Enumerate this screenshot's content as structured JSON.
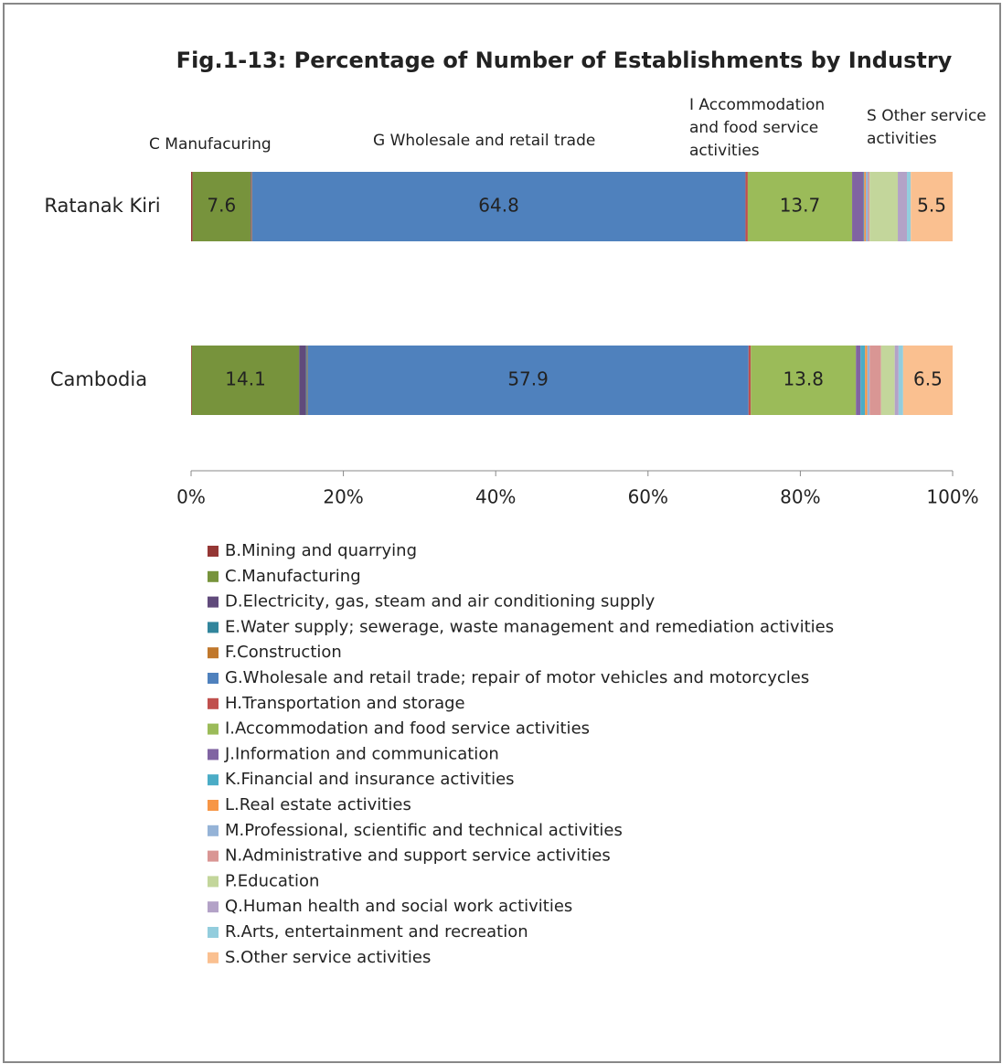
{
  "chart_data": {
    "type": "stacked_bar_horizontal",
    "title": "Fig.1-13: Percentage of Number of Establishments by Industry",
    "categories": [
      "Ratanak Kiri",
      "Cambodia"
    ],
    "xlim": [
      0,
      100
    ],
    "xticks": [
      {
        "value": 0,
        "label": "0%"
      },
      {
        "value": 20,
        "label": "20%"
      },
      {
        "value": 40,
        "label": "40%"
      },
      {
        "value": 60,
        "label": "60%"
      },
      {
        "value": 80,
        "label": "80%"
      },
      {
        "value": 100,
        "label": "100%"
      }
    ],
    "legend_position": "bottom",
    "annotations": [
      {
        "lines": [
          "C Manufacuring"
        ]
      },
      {
        "lines": [
          "G Wholesale and retail  trade"
        ]
      },
      {
        "lines": [
          "I Accommodation",
          "and food service",
          "activities"
        ]
      },
      {
        "lines": [
          "S Other service",
          "activities"
        ]
      }
    ],
    "series": [
      {
        "name": "B.Mining and quarrying",
        "color": "#953735",
        "values": [
          0.2,
          0.1
        ]
      },
      {
        "name": "C.Manufacturing",
        "color": "#77933c",
        "values": [
          7.6,
          14.1
        ],
        "data_labels": true
      },
      {
        "name": "D.Electricity, gas, steam and air conditioning supply",
        "color": "#604a7b",
        "values": [
          0.1,
          0.9
        ]
      },
      {
        "name": "E.Water supply; sewerage, waste management and remediation activities",
        "color": "#31859c",
        "values": [
          0,
          0.1
        ]
      },
      {
        "name": "F.Construction",
        "color": "#c0782c",
        "values": [
          0.1,
          0.1
        ]
      },
      {
        "name": "G.Wholesale and retail trade; repair of motor vehicles and motorcycles",
        "color": "#4f81bd",
        "values": [
          64.8,
          57.9
        ],
        "data_labels": true
      },
      {
        "name": "H.Transportation and storage",
        "color": "#c0504d",
        "values": [
          0.3,
          0.3
        ]
      },
      {
        "name": "I.Accommodation and food service activities",
        "color": "#9bbb59",
        "values": [
          13.7,
          13.8
        ],
        "data_labels": true
      },
      {
        "name": "J.Information and communication",
        "color": "#8064a2",
        "values": [
          1.5,
          0.6
        ]
      },
      {
        "name": "K.Financial and insurance activities",
        "color": "#4bacc6",
        "values": [
          0.1,
          0.6
        ]
      },
      {
        "name": "L.Real estate activities",
        "color": "#f79646",
        "values": [
          0.2,
          0.3
        ]
      },
      {
        "name": "M.Professional, scientific and technical activities",
        "color": "#95b3d7",
        "values": [
          0.3,
          0.3
        ]
      },
      {
        "name": "N.Administrative and support service activities",
        "color": "#d99694",
        "values": [
          0.2,
          1.5
        ]
      },
      {
        "name": "P.Education",
        "color": "#c3d69b",
        "values": [
          3.7,
          1.8
        ]
      },
      {
        "name": "Q.Human health and social work activities",
        "color": "#b3a2c7",
        "values": [
          1.2,
          0.5
        ]
      },
      {
        "name": "R.Arts, entertainment and recreation",
        "color": "#93cddd",
        "values": [
          0.5,
          0.6
        ]
      },
      {
        "name": "S.Other service activities",
        "color": "#fac090",
        "values": [
          5.5,
          6.5
        ],
        "data_labels": true
      }
    ]
  }
}
